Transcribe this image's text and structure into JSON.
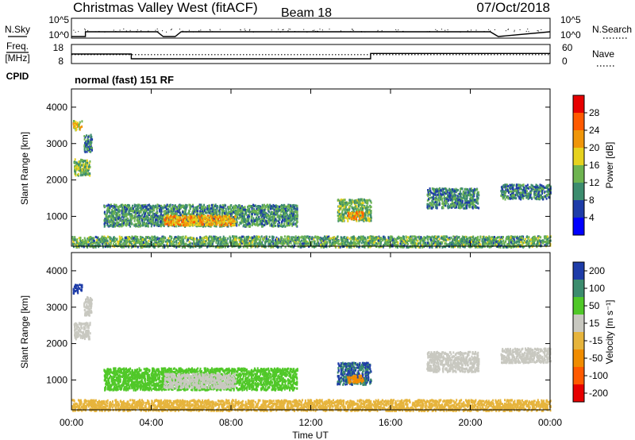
{
  "header": {
    "title": "Christmas Valley West (fitACF)",
    "beam": "Beam 18",
    "date": "07/Oct/2018"
  },
  "left_labels": {
    "nsky": "N.Sky",
    "freq_line1": "Freq.",
    "freq_line2": "[MHz]",
    "cpid": "CPID"
  },
  "right_labels": {
    "nsearch": "N.Search",
    "nave": "Nave"
  },
  "status_text": "normal (fast) 151 RF",
  "x_axis": {
    "label": "Time UT",
    "ticks": [
      "00:00",
      "04:00",
      "08:00",
      "12:00",
      "16:00",
      "20:00",
      "00:00"
    ]
  },
  "colors": {
    "power": [
      "#0000ff",
      "#1e3ca8",
      "#3c8c6e",
      "#6eb450",
      "#e6d21e",
      "#f0960a",
      "#ff5a00",
      "#e60000"
    ],
    "velocity": [
      "#e60000",
      "#ff5a00",
      "#f08c00",
      "#e6b43c",
      "#c8c8c0",
      "#50c828",
      "#3c8c6e",
      "#1e3ca8"
    ]
  },
  "chart_data": [
    {
      "type": "line",
      "name": "noise-strip",
      "y_left_ticks": [
        "10^5",
        "10^0"
      ],
      "y_right_ticks": [
        "10^5",
        "10^0"
      ],
      "x_range_hours": [
        0,
        24
      ],
      "series": [
        {
          "name": "N.Sky",
          "x": [
            0,
            0.7,
            0.7,
            4.3,
            4.6,
            5.2,
            5.5,
            15,
            21,
            21.4,
            24
          ],
          "y": [
            0,
            0,
            1,
            1,
            0,
            0,
            1,
            1,
            1,
            0,
            1
          ]
        }
      ]
    },
    {
      "type": "line",
      "name": "frequency-strip",
      "y_left_ticks": [
        "18",
        "8"
      ],
      "y_right_ticks": [
        "60",
        "0"
      ],
      "x_range_hours": [
        0,
        24
      ],
      "series": [
        {
          "name": "Freq.",
          "x": [
            0,
            3,
            3,
            15,
            15,
            21,
            21,
            24
          ],
          "y": [
            13,
            13,
            10.5,
            10.5,
            13.3,
            13.3,
            13.3,
            13.3
          ]
        },
        {
          "name": "Nave",
          "x": [
            0,
            24
          ],
          "y": [
            28,
            28
          ]
        }
      ]
    },
    {
      "type": "heatmap",
      "name": "power",
      "xlabel": "Time UT",
      "ylabel": "Slant Range [km]",
      "x_range_hours": [
        0,
        24
      ],
      "ylim": [
        180,
        4500
      ],
      "y_ticks": [
        1000,
        2000,
        3000,
        4000
      ],
      "colorbar": {
        "label": "Power [dB]",
        "ticks": [
          4,
          8,
          12,
          16,
          20,
          24,
          28
        ],
        "range": [
          0,
          32
        ]
      },
      "regions": [
        {
          "t0": 0.05,
          "t1": 0.5,
          "r0": 3400,
          "r1": 3650,
          "v": 18
        },
        {
          "t0": 0.1,
          "t1": 0.9,
          "r0": 2150,
          "r1": 2600,
          "v": 13
        },
        {
          "t0": 0.6,
          "t1": 1.0,
          "r0": 2800,
          "r1": 3300,
          "v": 9
        },
        {
          "t0": 1.6,
          "t1": 11.3,
          "r0": 750,
          "r1": 1350,
          "v": 11
        },
        {
          "t0": 4.6,
          "t1": 8.2,
          "r0": 780,
          "r1": 1050,
          "v": 21
        },
        {
          "t0": 13.3,
          "t1": 15.0,
          "r0": 900,
          "r1": 1500,
          "v": 13
        },
        {
          "t0": 13.8,
          "t1": 14.6,
          "r0": 950,
          "r1": 1150,
          "v": 22
        },
        {
          "t0": 17.8,
          "t1": 20.4,
          "r0": 1250,
          "r1": 1800,
          "v": 10
        },
        {
          "t0": 21.5,
          "t1": 24.0,
          "r0": 1500,
          "r1": 1900,
          "v": 9
        },
        {
          "t0": 0.0,
          "t1": 24.0,
          "r0": 180,
          "r1": 480,
          "v": 12
        }
      ]
    },
    {
      "type": "heatmap",
      "name": "velocity",
      "xlabel": "Time UT",
      "ylabel": "Slant Range [km]",
      "x_range_hours": [
        0,
        24
      ],
      "ylim": [
        180,
        4500
      ],
      "y_ticks": [
        1000,
        2000,
        3000,
        4000
      ],
      "colorbar": {
        "label": "Velocity [m s⁻¹]",
        "ticks": [
          "200",
          "100",
          "50",
          "15",
          "-15",
          "-50",
          "-100",
          "-200"
        ]
      },
      "regions": [
        {
          "t0": 0.05,
          "t1": 0.5,
          "r0": 3400,
          "r1": 3650,
          "v": 150
        },
        {
          "t0": 0.1,
          "t1": 0.9,
          "r0": 2150,
          "r1": 2600,
          "v": 0
        },
        {
          "t0": 0.6,
          "t1": 1.0,
          "r0": 2800,
          "r1": 3300,
          "v": 0
        },
        {
          "t0": 1.6,
          "t1": 11.3,
          "r0": 750,
          "r1": 1350,
          "v": 30
        },
        {
          "t0": 4.6,
          "t1": 8.2,
          "r0": 800,
          "r1": 1200,
          "v": 0
        },
        {
          "t0": 13.3,
          "t1": 15.0,
          "r0": 900,
          "r1": 1500,
          "v": 100
        },
        {
          "t0": 13.8,
          "t1": 14.6,
          "r0": 950,
          "r1": 1150,
          "v": -60
        },
        {
          "t0": 17.8,
          "t1": 20.4,
          "r0": 1250,
          "r1": 1800,
          "v": 0
        },
        {
          "t0": 21.5,
          "t1": 24.0,
          "r0": 1500,
          "r1": 1900,
          "v": 0
        },
        {
          "t0": 0.0,
          "t1": 24.0,
          "r0": 180,
          "r1": 480,
          "v": -30
        }
      ]
    }
  ]
}
